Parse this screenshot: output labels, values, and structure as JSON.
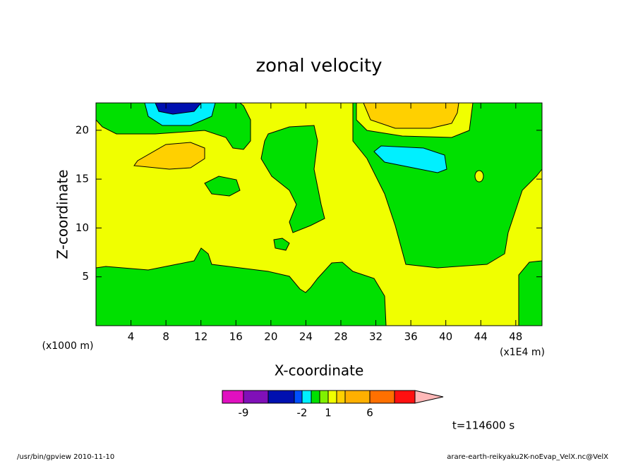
{
  "chart_data": {
    "type": "contour",
    "title": "zonal velocity",
    "x_label": "X-coordinate",
    "y_label": "Z-coordinate",
    "x_unit": "(x1E4 m)",
    "y_unit": "(x1000 m)",
    "xlim": [
      0,
      51
    ],
    "xticks": [
      4,
      8,
      12,
      16,
      20,
      24,
      28,
      32,
      36,
      40,
      44,
      48
    ],
    "ylim": [
      0,
      22.8
    ],
    "yticks": [
      5,
      10,
      15,
      20
    ],
    "colorbar": {
      "colors": [
        "#e010c0",
        "#8010b8",
        "#0010b0",
        "#0050ff",
        "#00f0ff",
        "#00e000",
        "#80f000",
        "#f0ff00",
        "#ffd000",
        "#ffb000",
        "#ff7000",
        "#ff1010",
        "#ff8080",
        "#ffb8b8"
      ],
      "labels": [
        -9,
        -2,
        1,
        6
      ]
    },
    "time_label": "t=114600 s"
  },
  "footer": {
    "left": "/usr/bin/gpview   2010-11-10",
    "right": "arare-earth-reikyaku2K-noEvap_VelX.nc@VelX"
  }
}
